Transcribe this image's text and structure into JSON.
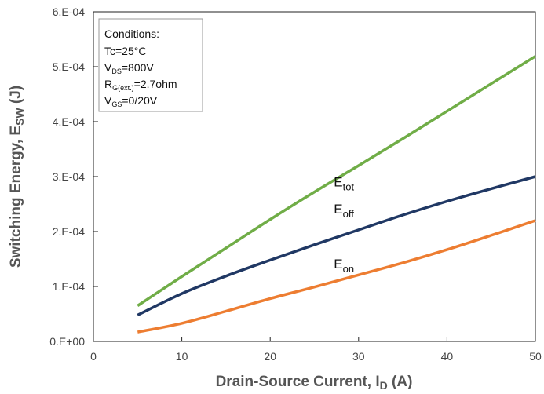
{
  "chart_data": {
    "type": "line",
    "xlabel": {
      "main": "Drain-Source Current, I",
      "sub": "D",
      "suffix": " (A)"
    },
    "ylabel": {
      "main": "Switching Energy, E",
      "sub": "SW",
      "suffix": " (J)"
    },
    "xlim": [
      0,
      50
    ],
    "ylim": [
      0,
      0.0006
    ],
    "x_ticks": [
      0,
      10,
      20,
      30,
      40,
      50
    ],
    "x_tick_labels": [
      "0",
      "10",
      "20",
      "30",
      "40",
      "50"
    ],
    "y_ticks": [
      0,
      0.0001,
      0.0002,
      0.0003,
      0.0004,
      0.0005,
      0.0006
    ],
    "y_tick_labels": [
      "0.E+00",
      "1.E-04",
      "2.E-04",
      "3.E-04",
      "4.E-04",
      "5.E-04",
      "6.E-04"
    ],
    "grid": {
      "x": false,
      "y": false
    },
    "conditions": {
      "title": "Conditions:",
      "tc": "Tc=25°C",
      "vds": {
        "main": "V",
        "sub": "DS",
        "value": "=800V"
      },
      "rg": {
        "main": "R",
        "sub": "G(ext.)",
        "value": "=2.7ohm"
      },
      "vgs": {
        "main": "V",
        "sub": "GS",
        "value": "=0/20V"
      }
    },
    "series": [
      {
        "name": "Etot",
        "label_main": "E",
        "label_sub": "tot",
        "color": "#70ad47",
        "x": [
          5,
          10,
          15,
          20,
          25,
          30,
          35,
          40,
          45,
          50
        ],
        "values": [
          6.5e-05,
          0.000118,
          0.00017,
          0.000222,
          0.000272,
          0.00032,
          0.000369,
          0.000419,
          0.000469,
          0.000519
        ]
      },
      {
        "name": "Eoff",
        "label_main": "E",
        "label_sub": "off",
        "color": "#203864",
        "x": [
          5,
          10,
          15,
          20,
          25,
          30,
          35,
          40,
          45,
          50
        ],
        "values": [
          4.8e-05,
          8.7e-05,
          0.000119,
          0.000148,
          0.000176,
          0.000203,
          0.00023,
          0.000255,
          0.000278,
          0.0003
        ]
      },
      {
        "name": "Eon",
        "label_main": "E",
        "label_sub": "on",
        "color": "#ed7d31",
        "x": [
          5,
          10,
          15,
          20,
          25,
          30,
          35,
          40,
          45,
          50
        ],
        "values": [
          1.7e-05,
          3.3e-05,
          5.5e-05,
          7.8e-05,
          9.9e-05,
          0.000121,
          0.000143,
          0.000167,
          0.000193,
          0.00022
        ]
      }
    ],
    "series_label_positions": [
      {
        "x": 27.2,
        "y": 0.000282
      },
      {
        "x": 27.2,
        "y": 0.000233
      },
      {
        "x": 27.2,
        "y": 0.000133
      }
    ]
  }
}
